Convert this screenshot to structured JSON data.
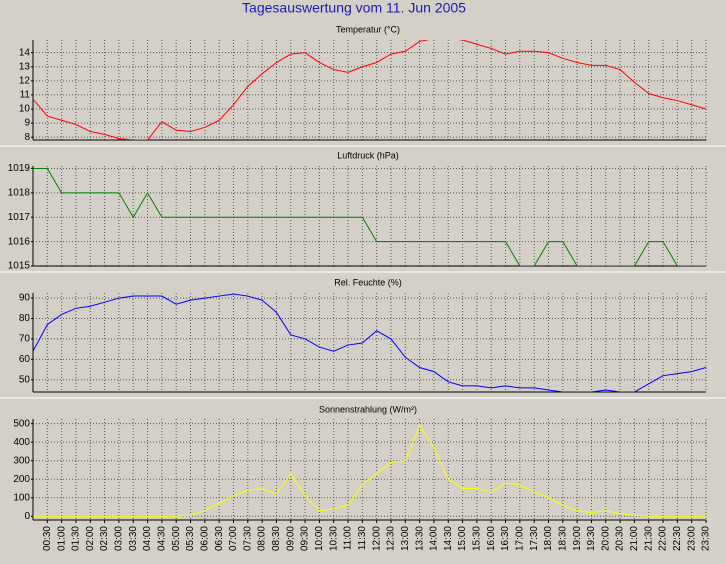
{
  "title": "Tagesauswertung vom 11. Jun 2005",
  "chart_data": [
    {
      "type": "line",
      "title": "Temperatur (°C)",
      "color": "#ff0000",
      "grid": true,
      "ylim": [
        7.8,
        14.9
      ],
      "yticks": [
        8,
        9,
        10,
        11,
        12,
        13,
        14
      ],
      "values": [
        10.7,
        9.5,
        9.2,
        8.9,
        8.4,
        8.2,
        7.9,
        7.8,
        7.8,
        9.1,
        8.5,
        8.4,
        8.7,
        9.2,
        10.3,
        11.6,
        12.5,
        13.3,
        13.9,
        14.0,
        13.3,
        12.8,
        12.6,
        13.0,
        13.3,
        13.9,
        14.1,
        14.8,
        15.0,
        15.0,
        14.9,
        14.6,
        14.3,
        13.9,
        14.1,
        14.1,
        14.0,
        13.6,
        13.3,
        13.1,
        13.1,
        12.8,
        11.9,
        11.1,
        10.8,
        10.6,
        10.3,
        10.0
      ]
    },
    {
      "type": "line",
      "title": "Luftdruck (hPa)",
      "color": "#008000",
      "grid": true,
      "ylim": [
        1015,
        1019.1
      ],
      "yticks": [
        1015,
        1016,
        1017,
        1018,
        1019
      ],
      "values": [
        1019,
        1019,
        1018,
        1018,
        1018,
        1018,
        1018,
        1017,
        1018,
        1017,
        1017,
        1017,
        1017,
        1017,
        1017,
        1017,
        1017,
        1017,
        1017,
        1017,
        1017,
        1017,
        1017,
        1017,
        1016,
        1016,
        1016,
        1016,
        1016,
        1016,
        1016,
        1016,
        1016,
        1016,
        1015,
        1015,
        1016,
        1016,
        1015,
        1015,
        1015,
        1015,
        1015,
        1016,
        1016,
        1015,
        1015,
        1015
      ]
    },
    {
      "type": "line",
      "title": "Rel. Feuchte (%)",
      "color": "#0000ff",
      "grid": true,
      "ylim": [
        44,
        92.5
      ],
      "yticks": [
        50,
        60,
        70,
        80,
        90
      ],
      "values": [
        64,
        77,
        82,
        85,
        86,
        88,
        90,
        91,
        91,
        91,
        87,
        89,
        90,
        91,
        92,
        91,
        89,
        83,
        72,
        70,
        66,
        64,
        67,
        68,
        74,
        70,
        61,
        56,
        54,
        49,
        47,
        47,
        46,
        47,
        46,
        46,
        45,
        44,
        44,
        44,
        45,
        44,
        44,
        48,
        52,
        53,
        54,
        56
      ]
    },
    {
      "type": "line",
      "title": "Sonnenstrahlung (W/m²)",
      "color": "#ffff00",
      "grid": true,
      "ylim": [
        -20,
        525
      ],
      "yticks": [
        0,
        100,
        200,
        300,
        400,
        500
      ],
      "values": [
        0,
        0,
        0,
        0,
        0,
        0,
        0,
        0,
        0,
        0,
        0,
        5,
        30,
        70,
        110,
        140,
        150,
        120,
        230,
        110,
        30,
        40,
        60,
        170,
        230,
        290,
        300,
        490,
        370,
        200,
        150,
        150,
        130,
        180,
        170,
        130,
        100,
        60,
        30,
        20,
        30,
        15,
        5,
        0,
        0,
        0,
        0,
        0
      ],
      "categories": [
        null,
        "00:30",
        "01:00",
        "01:30",
        "02:00",
        "02:30",
        "03:00",
        "03:30",
        "04:00",
        "04:30",
        "05:00",
        "05:30",
        "06:00",
        "06:30",
        "07:00",
        "07:30",
        "08:00",
        "08:30",
        "09:00",
        "09:30",
        "10:00",
        "10:30",
        "11:00",
        "11:30",
        "12:00",
        "12:30",
        "13:00",
        "13:30",
        "14:00",
        "14:30",
        "15:00",
        "15:30",
        "16:00",
        "16:30",
        "17:00",
        "17:30",
        "18:00",
        "18:30",
        "19:00",
        "19:30",
        "20:00",
        "20:30",
        "21:00",
        "21:30",
        "22:00",
        "22:30",
        "23:00",
        "23:30"
      ]
    }
  ]
}
